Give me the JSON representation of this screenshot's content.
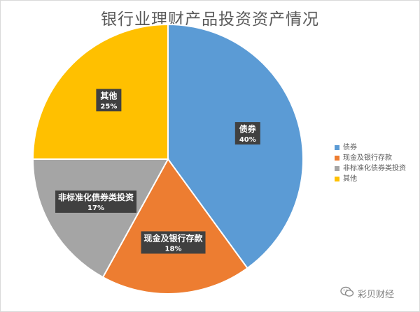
{
  "chart_data": {
    "type": "pie",
    "title": "银行业理财产品投资资产情况",
    "slices": [
      {
        "label": "债券",
        "value": 40,
        "value_label": "40%",
        "legend": "债券",
        "color": "#5b9bd5"
      },
      {
        "label": "现金及银行存款",
        "value": 18,
        "value_label": "18%",
        "legend": "现金及银行存款",
        "color": "#ed7d31"
      },
      {
        "label": "非标准化债券类投资",
        "value": 17,
        "value_label": "17%",
        "legend": "非标准化债券类投资",
        "color": "#a5a5a5"
      },
      {
        "label": "其他",
        "value": 25,
        "value_label": "25%",
        "legend": "其他",
        "color": "#ffc000"
      }
    ],
    "legend_position": "right"
  },
  "watermark": {
    "text": "彩贝财经",
    "icon": "wechat-icon"
  }
}
